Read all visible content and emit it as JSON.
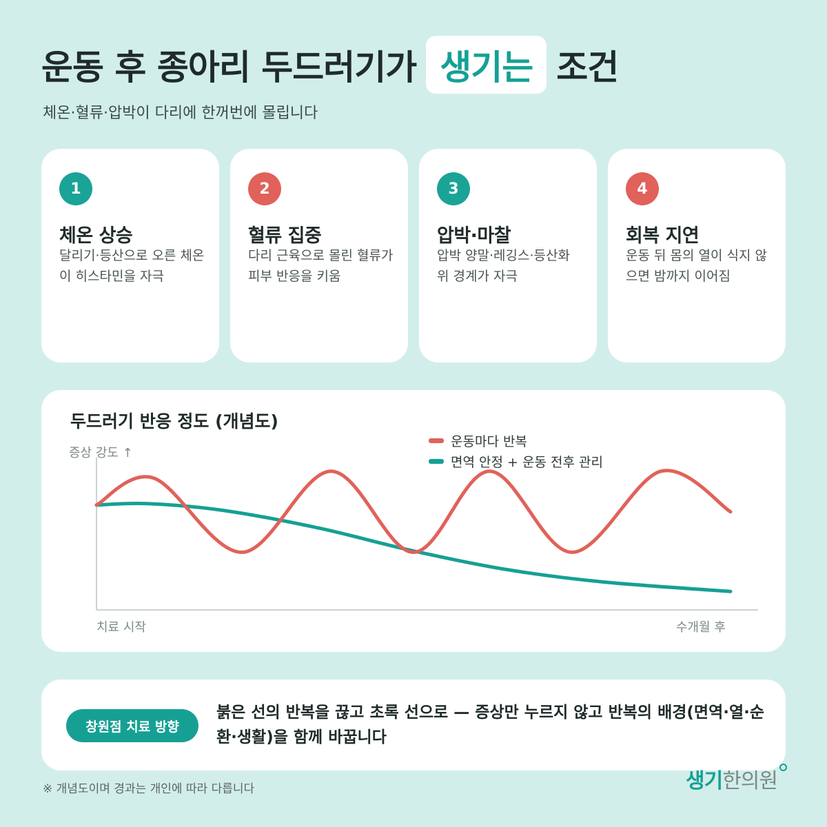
{
  "header": {
    "title_before": "운동 후 종아리 두드러기가",
    "title_highlight": "생기는",
    "title_after": "조건",
    "subtitle": "체온·혈류·압박이 다리에 한꺼번에 몰립니다"
  },
  "cards": [
    {
      "number": "1",
      "title": "체온 상승",
      "desc": "달리기·등산으로 오른 체온이 히스타민을 자극",
      "color": "#1aa396"
    },
    {
      "number": "2",
      "title": "혈류 집중",
      "desc": "다리 근육으로 몰린 혈류가 피부 반응을 키움",
      "color": "#e0625a"
    },
    {
      "number": "3",
      "title": "압박·마찰",
      "desc": "압박 양말·레깅스·등산화 위 경계가 자극",
      "color": "#1aa396"
    },
    {
      "number": "4",
      "title": "회복 지연",
      "desc": "운동 뒤 몸의 열이 식지 않으면 밤까지 이어짐",
      "color": "#e0625a"
    }
  ],
  "chart_data": {
    "type": "line",
    "title": "두드러기 반응 정도 (개념도)",
    "ylabel": "증상 강도 ↑",
    "x_start_label": "치료 시작",
    "x_end_label": "수개월 후",
    "xlim": [
      0,
      10
    ],
    "ylim": [
      0,
      10
    ],
    "grid": false,
    "legend_position": "top-right",
    "series": [
      {
        "name": "운동마다 반복",
        "color": "#e0625a",
        "x": [
          0,
          0.9,
          2.3,
          3.7,
          5.0,
          6.2,
          7.5,
          8.9,
          10.0
        ],
        "y": [
          7,
          9,
          3.5,
          9.5,
          3.5,
          9.5,
          3.5,
          9.5,
          6.5
        ]
      },
      {
        "name": "면역 안정 + 운동 전후 관리",
        "color": "#16a094",
        "x": [
          0,
          0.8,
          2.0,
          3.5,
          5.0,
          6.5,
          8.0,
          10.0
        ],
        "y": [
          7,
          7.1,
          6.6,
          5.3,
          3.6,
          2.2,
          1.3,
          0.6
        ]
      }
    ]
  },
  "bottom": {
    "pill": "창원점 치료 방향",
    "text": "붉은 선의 반복을 끊고 초록 선으로 — 증상만 누르지 않고 반복의 배경(면역·열·순환·생활)을 함께 바꿉니다"
  },
  "footnote": "※ 개념도이며 경과는 개인에 따라 다릅니다",
  "brand": {
    "part1": "생기",
    "part2": "한의원"
  }
}
